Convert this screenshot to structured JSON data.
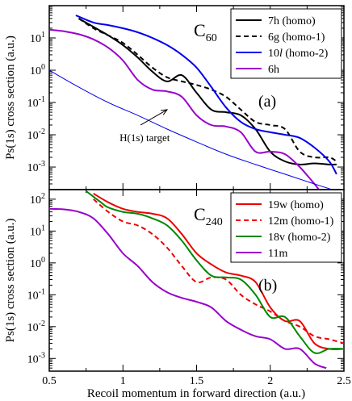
{
  "figure": {
    "x_axis_label": "Recoil momentum in forward direction (a.u.)",
    "x_tick_labels": [
      "0.5",
      "1",
      "1.5",
      "2",
      "2.5"
    ]
  },
  "chart_data": [
    {
      "type": "line",
      "panel_label": "(a)",
      "target": {
        "main": "C",
        "sub": "60"
      },
      "ylabel": "Ps(1s) cross section (a.u.)",
      "yscale": "log",
      "xlim": [
        0.5,
        2.5
      ],
      "ylim": [
        0.0002,
        100
      ],
      "grid": false,
      "legend_position": "top-right",
      "yticks": [
        {
          "value": 10,
          "label": "10",
          "exp": "1"
        },
        {
          "value": 1,
          "label": "10",
          "exp": "0"
        },
        {
          "value": 0.1,
          "label": "10",
          "exp": "-1"
        },
        {
          "value": 0.01,
          "label": "10",
          "exp": "-2"
        },
        {
          "value": 0.001,
          "label": "10",
          "exp": "-3"
        }
      ],
      "annotation": {
        "text": "H(1s) target",
        "from": [
          1.12,
          0.02
        ],
        "to": [
          1.3,
          0.06
        ]
      },
      "series": [
        {
          "name": "7h (homo)",
          "color": "#000000",
          "dash": "",
          "width": 2,
          "x": [
            0.7,
            0.8,
            0.9,
            1.0,
            1.1,
            1.2,
            1.3,
            1.4,
            1.5,
            1.6,
            1.7,
            1.8,
            1.9,
            2.0,
            2.1,
            2.2,
            2.3,
            2.4,
            2.45
          ],
          "y": [
            40,
            22,
            12,
            6,
            2.5,
            0.9,
            0.45,
            0.7,
            0.2,
            0.06,
            0.05,
            0.04,
            0.015,
            0.003,
            0.0015,
            0.0012,
            0.0013,
            0.0012,
            0.0012
          ]
        },
        {
          "name": "6g (homo-1)",
          "color": "#000000",
          "dash": "6,4",
          "width": 2,
          "x": [
            0.7,
            0.8,
            0.9,
            1.0,
            1.1,
            1.2,
            1.3,
            1.4,
            1.5,
            1.6,
            1.7,
            1.8,
            1.9,
            2.0,
            2.1,
            2.2,
            2.3,
            2.4,
            2.45
          ],
          "y": [
            40,
            20,
            12,
            7,
            3,
            1.2,
            0.6,
            0.45,
            0.35,
            0.25,
            0.15,
            0.06,
            0.025,
            0.02,
            0.015,
            0.003,
            0.002,
            0.002,
            0.0015
          ]
        },
        {
          "name": "10l (homo-2)",
          "name_parts": [
            "10",
            "l",
            " (homo-2)"
          ],
          "color": "#0000ee",
          "dash": "",
          "width": 2,
          "x": [
            0.68,
            0.8,
            0.9,
            1.0,
            1.1,
            1.2,
            1.3,
            1.4,
            1.5,
            1.6,
            1.7,
            1.8,
            1.9,
            2.0,
            2.1,
            2.2,
            2.3,
            2.4,
            2.45
          ],
          "y": [
            50,
            30,
            25,
            20,
            15,
            10,
            6,
            3,
            1.2,
            0.3,
            0.07,
            0.025,
            0.015,
            0.012,
            0.01,
            0.008,
            0.004,
            0.0015,
            0.0006
          ]
        },
        {
          "name": "6h",
          "color": "#9900cc",
          "dash": "",
          "width": 2,
          "x": [
            0.5,
            0.6,
            0.7,
            0.8,
            0.9,
            1.0,
            1.1,
            1.2,
            1.3,
            1.4,
            1.5,
            1.6,
            1.7,
            1.8,
            1.9,
            2.0,
            2.1,
            2.2,
            2.3,
            2.35
          ],
          "y": [
            18,
            16,
            13,
            9,
            5,
            2,
            0.5,
            0.25,
            0.22,
            0.15,
            0.04,
            0.02,
            0.018,
            0.012,
            0.003,
            0.003,
            0.0025,
            0.001,
            0.0003,
            0.00015
          ]
        },
        {
          "name": "",
          "color": "#0000ee",
          "dash": "",
          "width": 1,
          "x": [
            0.5,
            0.7,
            0.9,
            1.1,
            1.3,
            1.5,
            1.7,
            1.9,
            2.1,
            2.3,
            2.45
          ],
          "y": [
            1.0,
            0.3,
            0.1,
            0.04,
            0.015,
            0.006,
            0.0025,
            0.0012,
            0.0006,
            0.0003,
            0.00018
          ]
        }
      ]
    },
    {
      "type": "line",
      "panel_label": "(b)",
      "target": {
        "main": "C",
        "sub": "240"
      },
      "ylabel": "Ps(1s) cross section (a.u.)",
      "yscale": "log",
      "xlim": [
        0.5,
        2.5
      ],
      "ylim": [
        0.0004,
        200
      ],
      "grid": false,
      "legend_position": "top-right",
      "yticks": [
        {
          "value": 100,
          "label": "10",
          "exp": "2"
        },
        {
          "value": 10,
          "label": "10",
          "exp": "1"
        },
        {
          "value": 1,
          "label": "10",
          "exp": "0"
        },
        {
          "value": 0.1,
          "label": "10",
          "exp": "-1"
        },
        {
          "value": 0.01,
          "label": "10",
          "exp": "-2"
        },
        {
          "value": 0.001,
          "label": "10",
          "exp": "-3"
        }
      ],
      "series": [
        {
          "name": "19w (homo)",
          "color": "#ee0000",
          "dash": "",
          "width": 2,
          "x": [
            0.8,
            0.9,
            1.0,
            1.1,
            1.2,
            1.3,
            1.4,
            1.5,
            1.6,
            1.7,
            1.8,
            1.9,
            2.0,
            2.1,
            2.2,
            2.3,
            2.4,
            2.5
          ],
          "y": [
            150,
            80,
            50,
            40,
            35,
            25,
            8,
            2,
            0.9,
            0.5,
            0.4,
            0.25,
            0.04,
            0.015,
            0.015,
            0.003,
            0.002,
            0.002
          ]
        },
        {
          "name": "12m (homo-1)",
          "color": "#ee0000",
          "dash": "6,4",
          "width": 2,
          "x": [
            0.8,
            0.9,
            1.0,
            1.1,
            1.2,
            1.3,
            1.4,
            1.5,
            1.6,
            1.7,
            1.8,
            1.9,
            2.0,
            2.1,
            2.2,
            2.3,
            2.4,
            2.5
          ],
          "y": [
            100,
            40,
            20,
            15,
            8,
            3,
            0.8,
            0.25,
            0.35,
            0.3,
            0.1,
            0.05,
            0.03,
            0.015,
            0.01,
            0.005,
            0.004,
            0.003
          ]
        },
        {
          "name": "18v (homo-2)",
          "color": "#008800",
          "dash": "",
          "width": 2,
          "x": [
            0.75,
            0.85,
            0.9,
            1.0,
            1.1,
            1.2,
            1.3,
            1.4,
            1.5,
            1.6,
            1.7,
            1.8,
            1.9,
            2.0,
            2.1,
            2.2,
            2.3,
            2.4,
            2.5
          ],
          "y": [
            180,
            80,
            55,
            40,
            35,
            25,
            15,
            5,
            1.2,
            0.4,
            0.35,
            0.3,
            0.1,
            0.02,
            0.02,
            0.005,
            0.0015,
            0.002,
            0.002
          ]
        },
        {
          "name": "11m",
          "color": "#9900cc",
          "dash": "",
          "width": 2,
          "x": [
            0.5,
            0.6,
            0.7,
            0.8,
            0.9,
            1.0,
            1.1,
            1.2,
            1.3,
            1.4,
            1.5,
            1.6,
            1.7,
            1.8,
            1.9,
            2.0,
            2.1,
            2.2,
            2.3,
            2.38
          ],
          "y": [
            50,
            48,
            40,
            25,
            8,
            2,
            0.8,
            0.25,
            0.12,
            0.08,
            0.06,
            0.04,
            0.015,
            0.008,
            0.005,
            0.004,
            0.002,
            0.002,
            0.0007,
            0.0005
          ]
        }
      ]
    }
  ]
}
